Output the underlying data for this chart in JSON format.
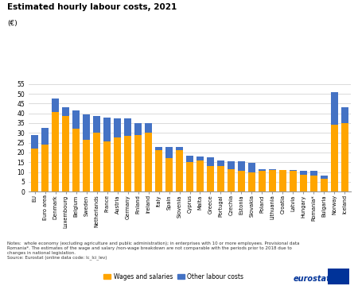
{
  "categories": [
    "EU",
    "Euro area",
    "Denmark",
    "Luxembourg",
    "Belgium",
    "Sweden",
    "Netherlands",
    "France",
    "Austria",
    "Germany",
    "Finland",
    "Ireland",
    "Italy",
    "Spain",
    "Slovenia",
    "Cyprus",
    "Malta",
    "Greece",
    "Portugal",
    "Czechia",
    "Estonia",
    "Slovakia",
    "Poland",
    "Lithuania",
    "Croatia",
    "Latvia",
    "Hungary",
    "Romania*",
    "Bulgaria",
    "Norway",
    "Iceland"
  ],
  "wages": [
    22.0,
    24.0,
    40.5,
    38.5,
    32.0,
    26.5,
    30.0,
    25.5,
    27.5,
    28.5,
    29.0,
    30.0,
    21.0,
    17.0,
    21.0,
    15.0,
    16.0,
    13.0,
    13.0,
    11.5,
    10.5,
    10.0,
    10.5,
    11.0,
    11.0,
    10.5,
    8.5,
    8.0,
    6.5,
    34.0,
    35.0
  ],
  "other": [
    7.0,
    8.5,
    7.0,
    4.5,
    9.5,
    13.0,
    8.5,
    12.5,
    10.0,
    9.0,
    6.0,
    5.0,
    2.0,
    6.0,
    2.0,
    3.5,
    2.0,
    4.5,
    3.0,
    4.0,
    5.0,
    4.5,
    1.0,
    0.5,
    0.0,
    0.5,
    2.0,
    2.5,
    1.5,
    17.0,
    8.0
  ],
  "title": "Estimated hourly labour costs, 2021",
  "subtitle": "(€)",
  "ylim_max": 57,
  "yticks": [
    0,
    5,
    10,
    15,
    20,
    25,
    30,
    35,
    40,
    45,
    50,
    55
  ],
  "color_wages": "#FFA500",
  "color_other": "#4472C4",
  "legend_wages": "Wages and salaries",
  "legend_other": "Other labour costs",
  "notes": "Notes:  whole economy (excluding agriculture and public administration); in enterprises with 10 or more employees. Provisional data\nRomania*. The estimates of the wage and salary /non-wage breakdown are not comparable with the periods prior to 2018 due to\nchanges in national legislation.\nSource: Eurostat (online data code: lc_lci_lev)"
}
